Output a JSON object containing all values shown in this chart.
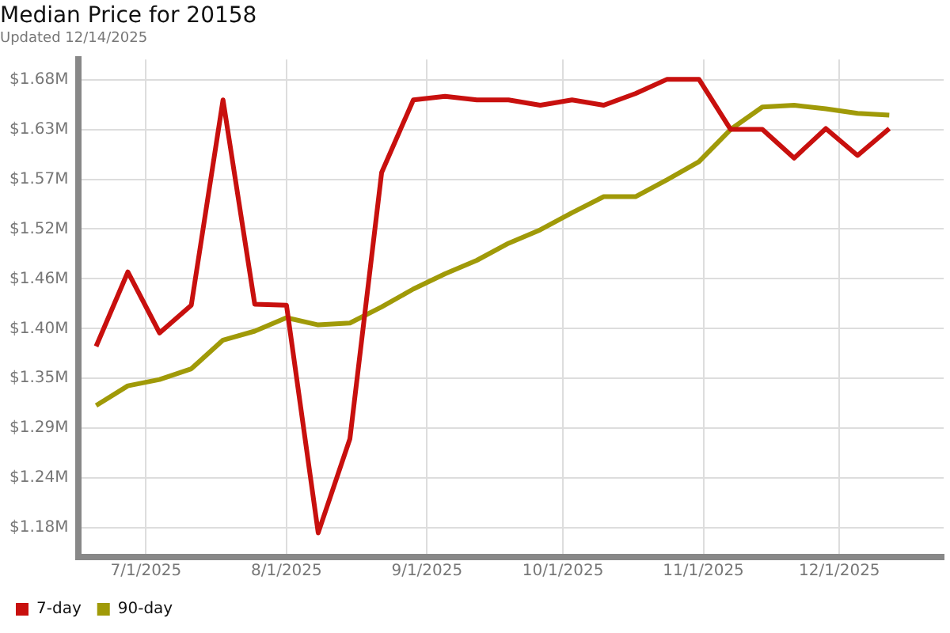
{
  "chart_data": {
    "type": "line",
    "title": "Median Price for 20158",
    "subtitle": "Updated 12/14/2025",
    "x": [
      "2025-06-20",
      "2025-06-27",
      "2025-07-04",
      "2025-07-11",
      "2025-07-18",
      "2025-07-25",
      "2025-08-01",
      "2025-08-08",
      "2025-08-15",
      "2025-08-22",
      "2025-08-29",
      "2025-09-05",
      "2025-09-12",
      "2025-09-19",
      "2025-09-26",
      "2025-10-03",
      "2025-10-10",
      "2025-10-17",
      "2025-10-24",
      "2025-10-31",
      "2025-11-07",
      "2025-11-14",
      "2025-11-21",
      "2025-11-28",
      "2025-12-05",
      "2025-12-12"
    ],
    "series": [
      {
        "name": "7-day",
        "color": "#c8100e",
        "values": [
          1.385,
          1.468,
          1.4,
          1.431,
          1.66,
          1.432,
          1.431,
          1.177,
          1.282,
          1.579,
          1.66,
          1.664,
          1.66,
          1.66,
          1.654,
          1.66,
          1.654,
          1.667,
          1.683,
          1.683,
          1.627,
          1.627,
          1.595,
          1.628,
          1.598,
          1.628
        ]
      },
      {
        "name": "90-day",
        "color": "#a09a08",
        "values": [
          1.319,
          1.341,
          1.348,
          1.36,
          1.392,
          1.402,
          1.417,
          1.409,
          1.411,
          1.429,
          1.449,
          1.466,
          1.481,
          1.5,
          1.515,
          1.534,
          1.552,
          1.552,
          1.571,
          1.591,
          1.627,
          1.652,
          1.654,
          1.65,
          1.645,
          1.643
        ]
      }
    ],
    "xlim": [
      "2025-06-16",
      "2025-12-24"
    ],
    "xticks": [
      {
        "value": "2025-07-01",
        "label": "7/1/2025"
      },
      {
        "value": "2025-08-01",
        "label": "8/1/2025"
      },
      {
        "value": "2025-09-01",
        "label": "9/1/2025"
      },
      {
        "value": "2025-10-01",
        "label": "10/1/2025"
      },
      {
        "value": "2025-11-01",
        "label": "11/1/2025"
      },
      {
        "value": "2025-12-01",
        "label": "12/1/2025"
      }
    ],
    "ylim": [
      1.15,
      1.705
    ],
    "yticks": [
      {
        "value": 1.1825,
        "label": "$1.18M"
      },
      {
        "value": 1.2381,
        "label": "$1.24M"
      },
      {
        "value": 1.2936,
        "label": "$1.29M"
      },
      {
        "value": 1.3492,
        "label": "$1.35M"
      },
      {
        "value": 1.4047,
        "label": "$1.40M"
      },
      {
        "value": 1.4603,
        "label": "$1.46M"
      },
      {
        "value": 1.5159,
        "label": "$1.52M"
      },
      {
        "value": 1.5714,
        "label": "$1.57M"
      },
      {
        "value": 1.627,
        "label": "$1.63M"
      },
      {
        "value": 1.6825,
        "label": "$1.68M"
      }
    ],
    "grid": true,
    "legend": "bottom left",
    "marker": "none",
    "line_style": "solid"
  }
}
